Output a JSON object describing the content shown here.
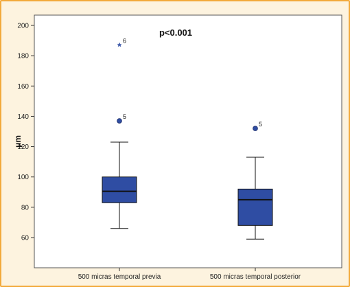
{
  "chart_data": {
    "type": "boxplot",
    "title": "",
    "annotation": "p<0.001",
    "ylabel": "μm",
    "xlabel": "",
    "ylim": [
      50,
      205
    ],
    "yticks": [
      60,
      80,
      100,
      120,
      140,
      160,
      180,
      200
    ],
    "categories": [
      "500 micras temporal previa",
      "500 micras temporal posterior"
    ],
    "boxes": [
      {
        "category": "500 micras temporal previa",
        "whisker_low": 66,
        "q1": 83,
        "median": 90.5,
        "q3": 100,
        "whisker_high": 123,
        "outliers": [
          {
            "label": "5",
            "value": 137,
            "marker": "circle"
          },
          {
            "label": "6",
            "value": 187,
            "marker": "star"
          }
        ]
      },
      {
        "category": "500 micras temporal posterior",
        "whisker_low": 59,
        "q1": 68,
        "median": 85,
        "q3": 92,
        "whisker_high": 113,
        "outliers": [
          {
            "label": "5",
            "value": 132,
            "marker": "circle"
          }
        ]
      }
    ],
    "box_color": "#2f4da3",
    "grid": false
  },
  "colors": {
    "frame_border": "#f2a93b",
    "frame_background": "#fdf3df",
    "plot_background": "#ffffff"
  }
}
